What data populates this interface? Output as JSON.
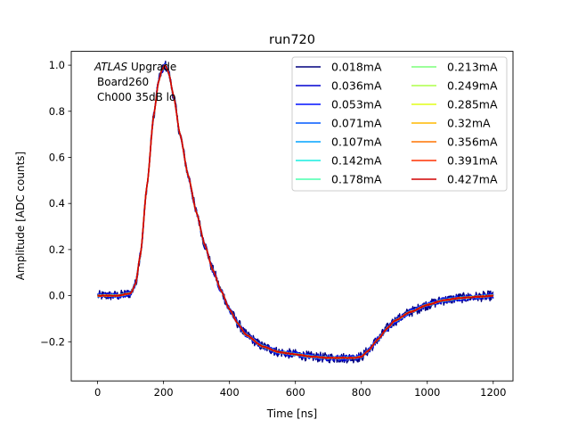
{
  "chart_data": {
    "type": "line",
    "title": "run720",
    "xlabel": "Time [ns]",
    "ylabel": "Amplitude [ADC counts]",
    "xlim": [
      -80,
      1260
    ],
    "ylim": [
      -0.37,
      1.06
    ],
    "xticks": [
      0,
      200,
      400,
      600,
      800,
      1000,
      1200
    ],
    "xtick_labels": [
      "0",
      "200",
      "400",
      "600",
      "800",
      "1000",
      "1200"
    ],
    "yticks": [
      -0.2,
      0.0,
      0.2,
      0.4,
      0.6,
      0.8,
      1.0
    ],
    "ytick_labels": [
      "−0.2",
      "0.0",
      "0.2",
      "0.4",
      "0.6",
      "0.8",
      "1.0"
    ],
    "grid": false,
    "legend_position": "top-right",
    "annotation": {
      "line1_italic": "ATLAS",
      "line1_rest": " Upgrade",
      "line2": "Board260",
      "line3": "Ch000 35dB lo"
    },
    "waveform_shape": {
      "x": [
        0,
        60,
        100,
        115,
        130,
        150,
        170,
        185,
        195,
        205,
        215,
        230,
        250,
        275,
        300,
        325,
        350,
        375,
        400,
        425,
        450,
        500,
        550,
        600,
        650,
        700,
        750,
        780,
        800,
        820,
        850,
        880,
        900,
        950,
        1000,
        1050,
        1100,
        1150,
        1200
      ],
      "y": [
        0.0,
        0.0,
        0.01,
        0.05,
        0.18,
        0.48,
        0.78,
        0.93,
        0.98,
        1.0,
        0.97,
        0.87,
        0.7,
        0.52,
        0.36,
        0.22,
        0.11,
        0.02,
        -0.06,
        -0.12,
        -0.17,
        -0.22,
        -0.245,
        -0.255,
        -0.265,
        -0.27,
        -0.27,
        -0.27,
        -0.265,
        -0.24,
        -0.19,
        -0.14,
        -0.11,
        -0.07,
        -0.04,
        -0.02,
        -0.01,
        -0.005,
        0.0
      ]
    },
    "series": [
      {
        "name": "0.018mA",
        "color": "#00007f",
        "noise": 0.022
      },
      {
        "name": "0.036mA",
        "color": "#0000d1",
        "noise": 0.014
      },
      {
        "name": "0.053mA",
        "color": "#0010ff",
        "noise": 0.01
      },
      {
        "name": "0.071mA",
        "color": "#0058ff",
        "noise": 0.007
      },
      {
        "name": "0.107mA",
        "color": "#00a4ff",
        "noise": 0.005
      },
      {
        "name": "0.142mA",
        "color": "#16eee0",
        "noise": 0.004
      },
      {
        "name": "0.178mA",
        "color": "#49ffad",
        "noise": 0.003
      },
      {
        "name": "0.213mA",
        "color": "#7cff7a",
        "noise": 0.003
      },
      {
        "name": "0.249mA",
        "color": "#adff49",
        "noise": 0.003
      },
      {
        "name": "0.285mA",
        "color": "#e0fe16",
        "noise": 0.003
      },
      {
        "name": "0.32mA",
        "color": "#ffb900",
        "noise": 0.003
      },
      {
        "name": "0.356mA",
        "color": "#ff7300",
        "noise": 0.003
      },
      {
        "name": "0.391mA",
        "color": "#ff3000",
        "noise": 0.003
      },
      {
        "name": "0.427mA",
        "color": "#d10000",
        "noise": 0.002
      }
    ]
  }
}
